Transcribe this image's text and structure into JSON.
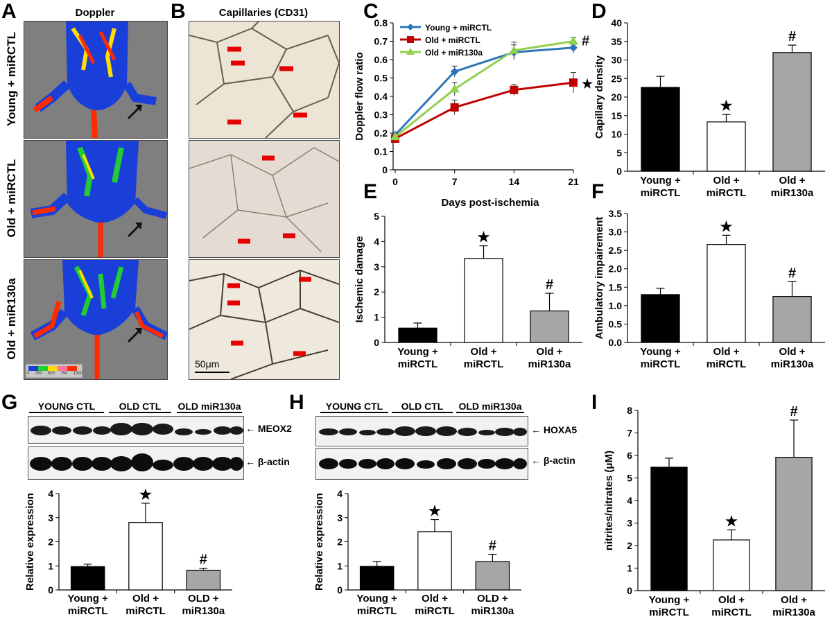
{
  "panel_letters": {
    "A": "A",
    "B": "B",
    "C": "C",
    "D": "D",
    "E": "E",
    "F": "F",
    "G": "G",
    "H": "H",
    "I": "I"
  },
  "panel_a": {
    "title": "Doppler",
    "rows": [
      "Young + miRCTL",
      "Old + miRCTL",
      "Old + miR130a"
    ],
    "scale_ticks": [
      "0",
      "250",
      "500",
      "750",
      "1000"
    ]
  },
  "panel_b": {
    "title": "Capillaries (CD31)",
    "scale_bar": "50μm"
  },
  "blots": {
    "G": {
      "groups": [
        "YOUNG CTL",
        "OLD CTL",
        "OLD miR130a"
      ],
      "top_label": "← MEOX2",
      "bottom_label": "← β-actin"
    },
    "H": {
      "groups": [
        "YOUNG CTL",
        "OLD CTL",
        "OLD miR130a"
      ],
      "top_label": "← HOXA5",
      "bottom_label": "← β-actin"
    }
  },
  "colors": {
    "young": "#000000",
    "old": "#ffffff",
    "mir": "#a6a6a6",
    "line_young": "#2e75b6",
    "line_old": "#c00000",
    "line_mir": "#92d050"
  },
  "chart_data": [
    {
      "id": "C",
      "type": "line",
      "x": [
        0,
        7,
        14,
        21
      ],
      "xlabel": "Days post-ischemia",
      "ylabel": "Doppler flow ratio",
      "ylim": [
        0,
        0.8
      ],
      "yticks": [
        "0",
        "0.1",
        "0.2",
        "0.3",
        "0.4",
        "0.5",
        "0.6",
        "0.7",
        "0.8"
      ],
      "xticks": [
        "0",
        "7",
        "14",
        "21"
      ],
      "series": [
        {
          "name": "Young + miRCTL",
          "values": [
            0.19,
            0.535,
            0.64,
            0.665
          ],
          "errors": [
            0.015,
            0.03,
            0.04,
            0.03
          ]
        },
        {
          "name": "Old + miRCTL",
          "values": [
            0.17,
            0.34,
            0.435,
            0.475
          ],
          "errors": [
            0.015,
            0.04,
            0.03,
            0.055
          ]
        },
        {
          "name": "Old + miR130a",
          "values": [
            0.18,
            0.44,
            0.65,
            0.7
          ],
          "errors": [
            0.015,
            0.035,
            0.045,
            0.02
          ]
        }
      ],
      "annotations": [
        "#",
        "★"
      ],
      "legend": "top-left"
    },
    {
      "id": "D",
      "type": "bar",
      "categories": [
        "Young + miRCTL",
        "Old + miRCTL",
        "Old + miR130a"
      ],
      "values": [
        22.6,
        13.3,
        32.0
      ],
      "errors": [
        3.0,
        2.0,
        2.0
      ],
      "ylabel": "Capillary density",
      "ylim": [
        0,
        40
      ],
      "yticks": [
        "0",
        "5",
        "10",
        "15",
        "20",
        "25",
        "30",
        "35",
        "40"
      ],
      "annotations": [
        "",
        "★",
        "#"
      ]
    },
    {
      "id": "E",
      "type": "bar",
      "categories": [
        "Young + miRCTL",
        "Old + miRCTL",
        "Old + miR130a"
      ],
      "values": [
        0.57,
        3.33,
        1.25
      ],
      "errors": [
        0.2,
        0.5,
        0.7
      ],
      "ylabel": "Ischemic damage",
      "ylim": [
        0,
        5
      ],
      "yticks": [
        "0",
        "1",
        "2",
        "3",
        "4",
        "5"
      ],
      "annotations": [
        "",
        "★",
        "#"
      ]
    },
    {
      "id": "F",
      "type": "bar",
      "categories": [
        "Young + miRCTL",
        "Old + miRCTL",
        "Old + miR130a"
      ],
      "values": [
        1.3,
        2.66,
        1.25
      ],
      "errors": [
        0.17,
        0.25,
        0.4
      ],
      "ylabel": "Ambulatory impairement",
      "ylim": [
        0,
        3.5
      ],
      "yticks": [
        "0.0",
        "0.5",
        "1.0",
        "1.5",
        "2.0",
        "2.5",
        "3.0",
        "3.5"
      ],
      "annotations": [
        "",
        "★",
        "#"
      ]
    },
    {
      "id": "G",
      "type": "bar",
      "categories": [
        "Young + miRCTL",
        "Old + miRCTL",
        "OLD + miR130a"
      ],
      "values": [
        0.97,
        2.8,
        0.82
      ],
      "errors": [
        0.1,
        0.8,
        0.08
      ],
      "ylabel": "Relative expression",
      "ylim": [
        0,
        4
      ],
      "yticks": [
        "0",
        "1",
        "2",
        "3",
        "4"
      ],
      "annotations": [
        "",
        "★",
        "#"
      ]
    },
    {
      "id": "H",
      "type": "bar",
      "categories": [
        "Young + miRCTL",
        "Old + miRCTL",
        "OLD + miR130a"
      ],
      "values": [
        0.98,
        2.42,
        1.18
      ],
      "errors": [
        0.2,
        0.5,
        0.3
      ],
      "ylabel": "Relative expression",
      "ylim": [
        0,
        4
      ],
      "yticks": [
        "0",
        "1",
        "2",
        "3",
        "4"
      ],
      "annotations": [
        "",
        "★",
        "#"
      ]
    },
    {
      "id": "I",
      "type": "bar",
      "categories": [
        "Young + miRCTL",
        "Old + miRCTL",
        "Old + miR130a"
      ],
      "values": [
        5.48,
        2.25,
        5.92
      ],
      "errors": [
        0.4,
        0.45,
        1.65
      ],
      "ylabel": "nitrites/nitrates (μM)",
      "ylim": [
        0,
        8
      ],
      "yticks": [
        "0",
        "1",
        "2",
        "3",
        "4",
        "5",
        "6",
        "7",
        "8"
      ],
      "annotations": [
        "",
        "★",
        "#"
      ]
    }
  ]
}
